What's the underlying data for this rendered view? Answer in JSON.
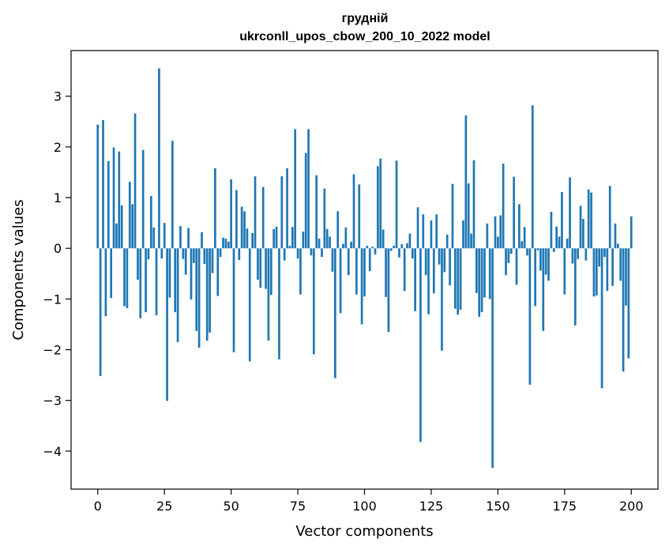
{
  "chart_data": {
    "type": "bar",
    "title": "грудній",
    "subtitle": "ukrconll_upos_cbow_200_10_2022 model",
    "xlabel": "Vector components",
    "ylabel": "Components values",
    "xlim": [
      -10,
      210
    ],
    "ylim": [
      -4.75,
      3.9
    ],
    "xticks": [
      0,
      25,
      50,
      75,
      100,
      125,
      150,
      175,
      200
    ],
    "yticks": [
      -4,
      -3,
      -2,
      -1,
      0,
      1,
      2,
      3
    ],
    "ytick_labels": [
      "−4",
      "−3",
      "−2",
      "−1",
      "0",
      "1",
      "2",
      "3"
    ],
    "grid": false,
    "bar_color": "#1f77b4",
    "values": [
      2.44,
      -2.52,
      2.53,
      -1.34,
      1.72,
      -0.98,
      1.99,
      0.49,
      1.91,
      0.85,
      -1.14,
      -1.18,
      1.31,
      0.87,
      2.66,
      -0.62,
      -1.38,
      1.94,
      -1.26,
      -0.22,
      1.03,
      0.41,
      -1.32,
      3.55,
      -0.2,
      0.5,
      -3.01,
      -0.97,
      2.12,
      -1.26,
      -1.85,
      0.44,
      -0.21,
      -0.52,
      0.4,
      -1.01,
      -0.29,
      -1.63,
      -1.96,
      0.32,
      -0.31,
      -1.82,
      -1.66,
      -0.49,
      1.58,
      -0.94,
      -0.17,
      0.21,
      0.19,
      0.13,
      1.36,
      -2.05,
      1.15,
      -0.23,
      0.82,
      0.73,
      0.39,
      -2.23,
      0.3,
      1.42,
      -0.62,
      -0.78,
      1.21,
      -0.8,
      -1.82,
      -0.92,
      0.38,
      0.43,
      -2.19,
      1.42,
      -0.24,
      1.58,
      0.05,
      0.42,
      2.35,
      -0.2,
      -0.91,
      0.33,
      1.88,
      2.35,
      -0.14,
      -2.09,
      1.44,
      0.19,
      -0.17,
      1.18,
      0.38,
      0.23,
      -0.46,
      -2.56,
      0.73,
      -1.28,
      0.09,
      0.41,
      -0.53,
      0.13,
      1.46,
      -0.91,
      1.26,
      -1.5,
      -0.95,
      0.05,
      -0.45,
      0.03,
      -0.12,
      1.62,
      1.77,
      0.37,
      -0.96,
      -1.65,
      -0.05,
      0.05,
      1.73,
      -0.18,
      0.08,
      -0.84,
      0.1,
      0.29,
      -0.2,
      -1.24,
      0.81,
      -3.82,
      0.67,
      -0.53,
      -1.3,
      0.55,
      -0.89,
      0.67,
      -0.32,
      -2.02,
      -0.47,
      0.27,
      -0.73,
      1.27,
      -1.19,
      -1.31,
      -1.21,
      0.55,
      2.62,
      1.28,
      0.29,
      1.74,
      -0.88,
      -1.35,
      -1.26,
      -0.97,
      0.49,
      -1.0,
      -4.33,
      0.63,
      0.23,
      0.65,
      1.67,
      -0.53,
      -0.29,
      -0.11,
      1.41,
      -0.72,
      0.87,
      0.14,
      0.42,
      -0.14,
      -2.69,
      2.82,
      -1.14,
      -0.04,
      -0.44,
      -1.63,
      -0.52,
      -0.64,
      0.72,
      -0.07,
      0.43,
      0.23,
      1.11,
      -0.91,
      0.19,
      1.4,
      -0.3,
      -1.52,
      -0.21,
      0.84,
      0.58,
      -0.24,
      1.16,
      1.1,
      -0.95,
      -0.93,
      -0.36,
      -2.76,
      -0.17,
      -0.84,
      1.23,
      -0.74,
      0.49,
      0.09,
      -0.64,
      -2.43,
      -1.13,
      -2.17,
      0.63
    ]
  }
}
